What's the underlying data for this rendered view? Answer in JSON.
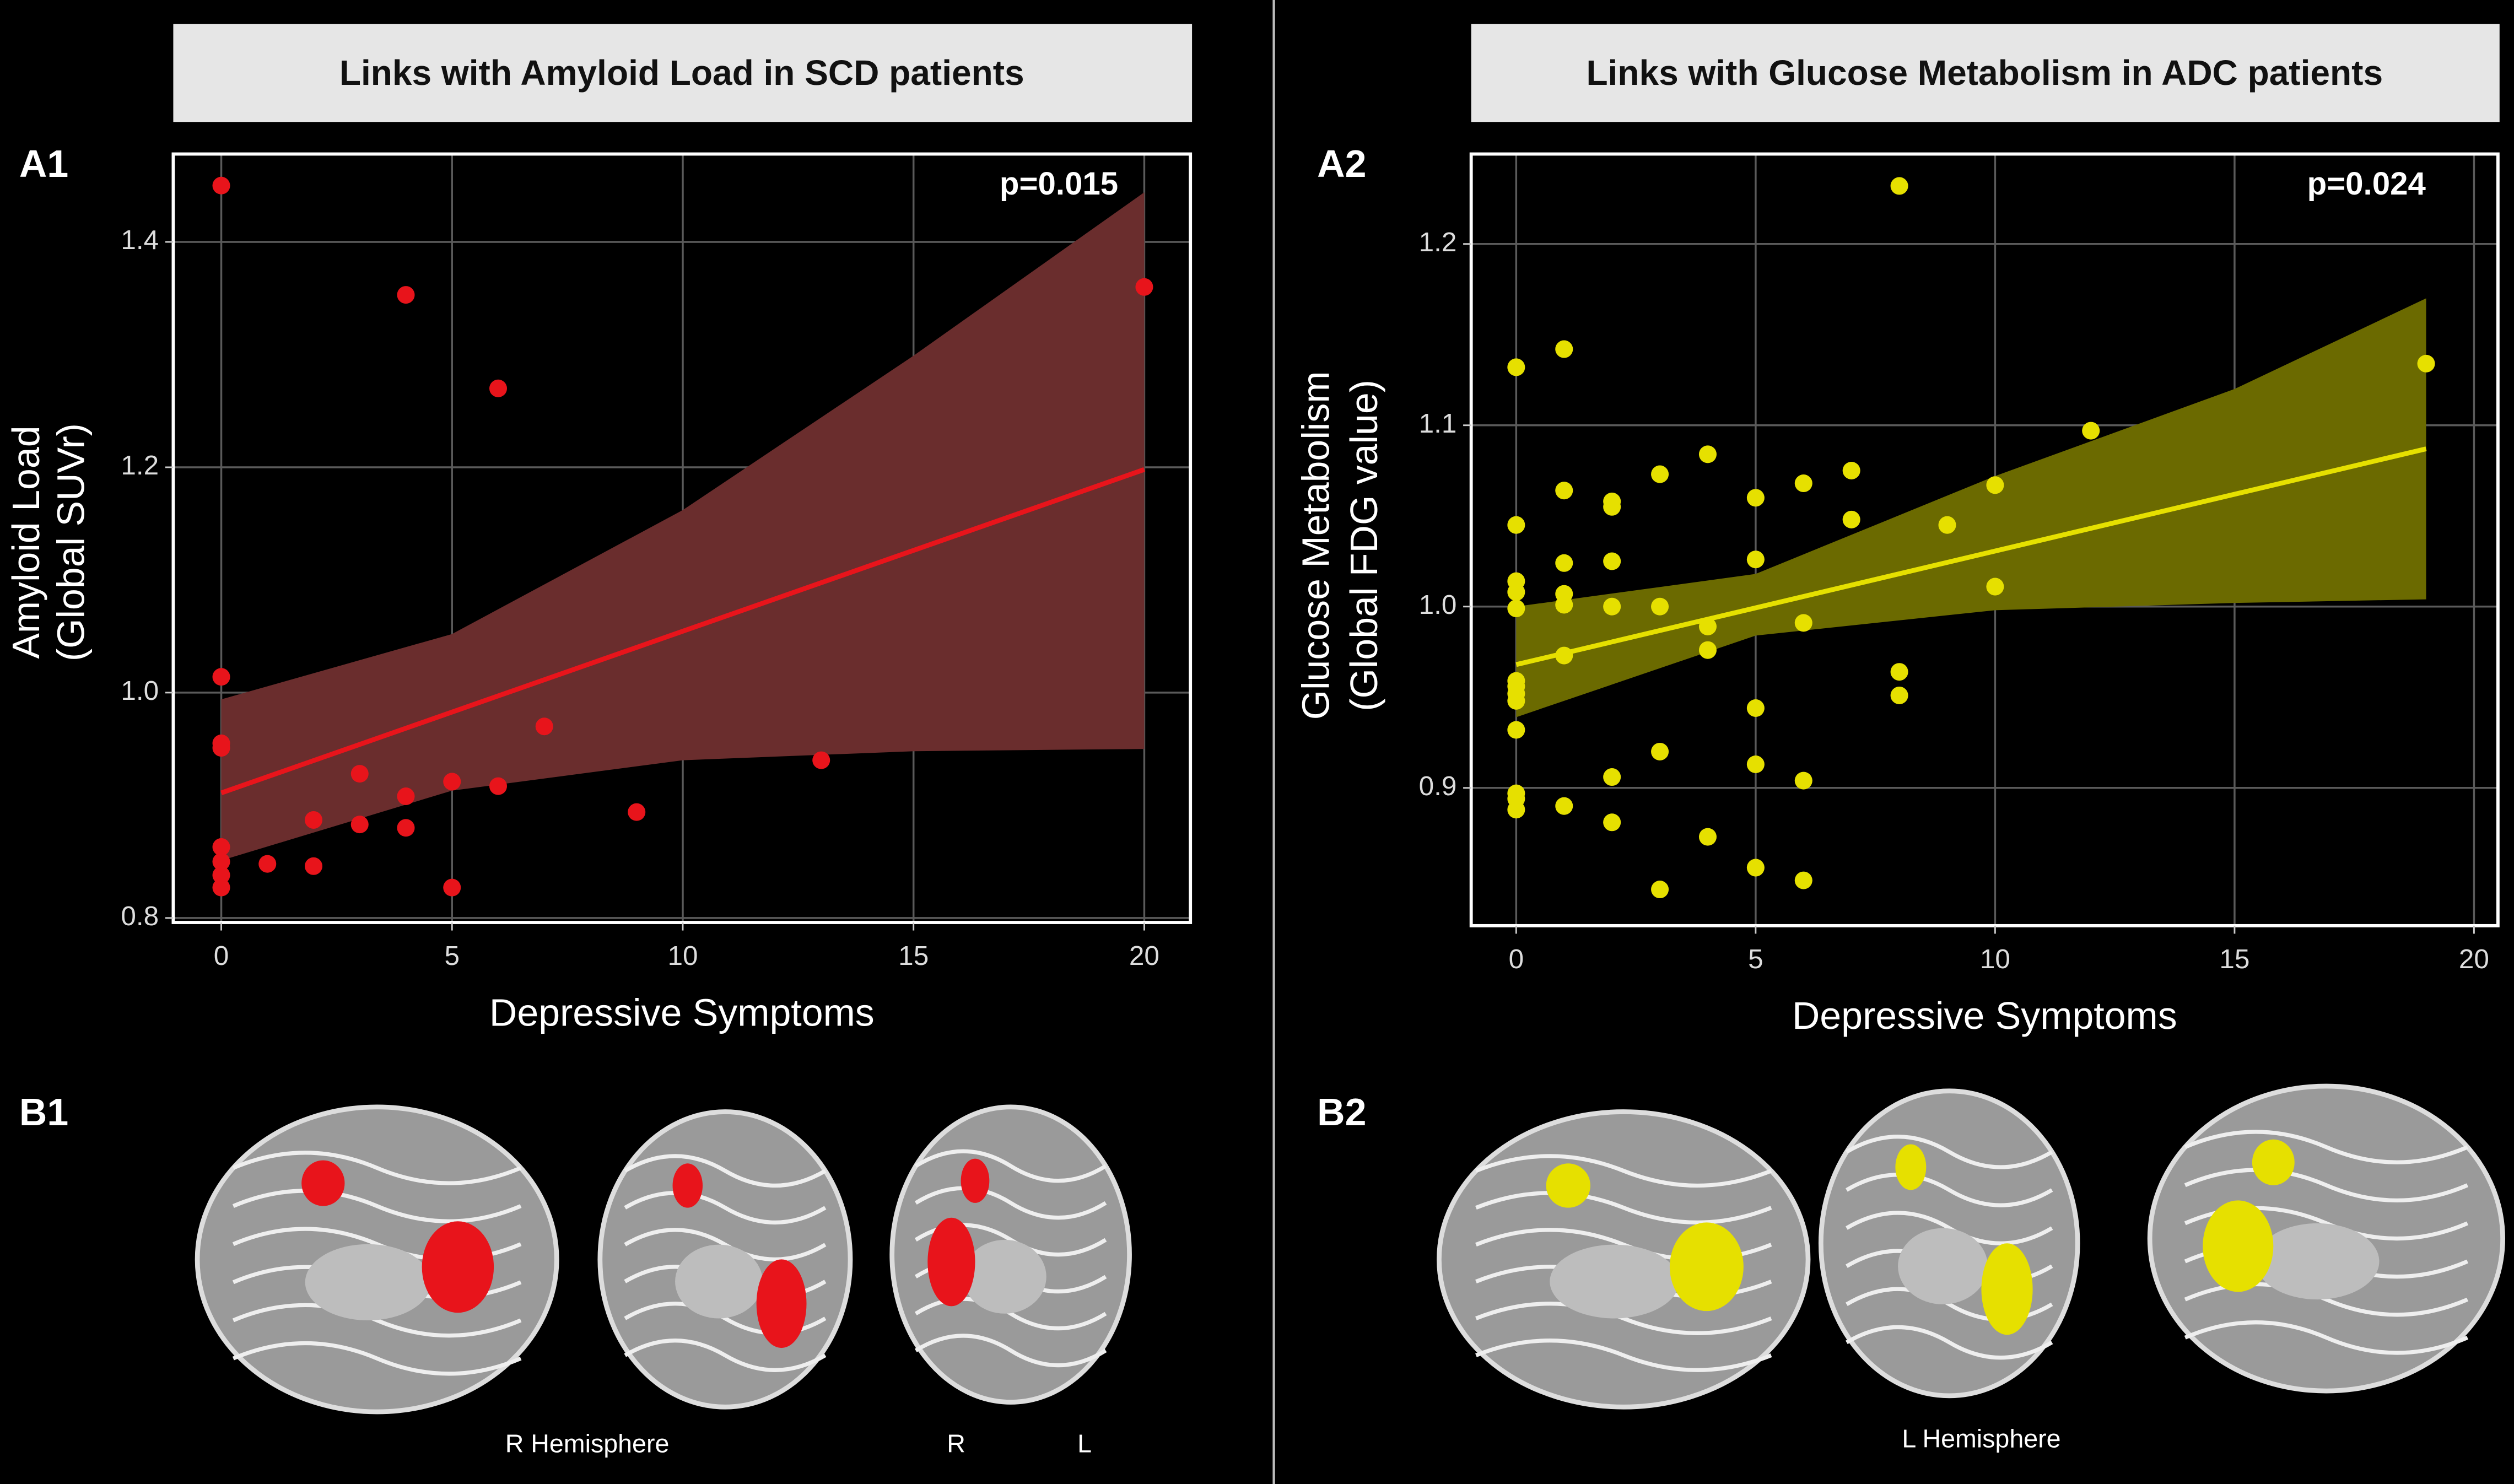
{
  "chart_data": [
    {
      "type": "scatter",
      "title": "Links with Amyloid Load in SCD patients",
      "panel_label": "A1",
      "annotation": "p=0.015",
      "xlabel": "Depressive Symptoms",
      "ylabel": [
        "Amyloid Load",
        "(Global SUVr)"
      ],
      "x": [
        0,
        0,
        0,
        0,
        0,
        0,
        0,
        0,
        1,
        2,
        2,
        3,
        3,
        4,
        4,
        4,
        5,
        5,
        6,
        6,
        7,
        9,
        13,
        20
      ],
      "y": [
        1.45,
        1.014,
        0.955,
        0.951,
        0.863,
        0.85,
        0.838,
        0.827,
        0.848,
        0.887,
        0.846,
        0.928,
        0.883,
        1.353,
        0.908,
        0.88,
        0.921,
        0.827,
        1.27,
        0.917,
        0.97,
        0.894,
        0.94,
        1.36
      ],
      "color": "#e8141b",
      "fit": {
        "x": [
          0,
          20
        ],
        "y": [
          0.911,
          1.198
        ]
      },
      "band": {
        "x": [
          0,
          5,
          10,
          15,
          20
        ],
        "lower": [
          0.851,
          0.913,
          0.94,
          0.948,
          0.95
        ],
        "upper": [
          0.994,
          1.052,
          1.162,
          1.299,
          1.444
        ]
      },
      "band_color": "#6a2d2d",
      "xlim": [
        -1.04,
        21.0
      ],
      "ylim": [
        0.796,
        1.478
      ],
      "xticks": [
        0,
        5,
        10,
        15,
        20
      ],
      "yticks": [
        0.8,
        {
          "value": 1,
          "label": "1.0"
        },
        1.2,
        1.4
      ],
      "grid": true,
      "brain": {
        "label": "B1",
        "caption": "R Hemisphere",
        "sides": [
          "R",
          "L"
        ]
      }
    },
    {
      "type": "scatter",
      "title": "Links with Glucose Metabolism in ADC patients",
      "panel_label": "A2",
      "annotation": "p=0.024",
      "xlabel": "Depressive Symptoms",
      "ylabel": [
        "Glucose Metabolism",
        "(Global FDG value)"
      ],
      "x": [
        0,
        0,
        0,
        0,
        0,
        0,
        0,
        0,
        0,
        0,
        0,
        0,
        0,
        1,
        1,
        1,
        1,
        1,
        1,
        1,
        2,
        2,
        2,
        2,
        2,
        2,
        3,
        3,
        3,
        3,
        4,
        4,
        4,
        4,
        5,
        5,
        5,
        5,
        5,
        6,
        6,
        6,
        6,
        7,
        7,
        8,
        8,
        8,
        9,
        10,
        10,
        12,
        19
      ],
      "y": [
        1.132,
        1.045,
        1.014,
        1.008,
        0.999,
        0.959,
        0.956,
        0.952,
        0.948,
        0.932,
        0.897,
        0.894,
        0.888,
        1.142,
        1.064,
        1.024,
        1.007,
        1.001,
        0.973,
        0.89,
        1.058,
        1.055,
        1.025,
        1.0,
        0.906,
        0.881,
        1.073,
        1.0,
        0.92,
        0.844,
        1.084,
        0.989,
        0.976,
        0.873,
        1.06,
        1.026,
        0.944,
        0.913,
        0.856,
        1.068,
        0.991,
        0.904,
        0.849,
        1.075,
        1.048,
        1.232,
        0.964,
        0.951,
        1.045,
        1.067,
        1.011,
        1.097,
        1.134
      ],
      "color": "#e6e000",
      "fit": {
        "x": [
          0,
          19
        ],
        "y": [
          0.968,
          1.087
        ]
      },
      "band": {
        "x": [
          0,
          5,
          10,
          15,
          19
        ],
        "lower": [
          0.939,
          0.984,
          0.998,
          1.002,
          1.004
        ],
        "upper": [
          1.0,
          1.018,
          1.072,
          1.12,
          1.17
        ]
      },
      "band_color": "#6b6a00",
      "xlim": [
        -0.94,
        20.5
      ],
      "ylim": [
        0.824,
        1.2496
      ],
      "xticks": [
        0,
        5,
        10,
        15,
        20
      ],
      "yticks": [
        0.9,
        {
          "value": 1,
          "label": "1.0"
        },
        1.1,
        1.2
      ],
      "grid": true,
      "brain": {
        "label": "B2",
        "caption": "L Hemisphere",
        "sides": []
      }
    }
  ]
}
